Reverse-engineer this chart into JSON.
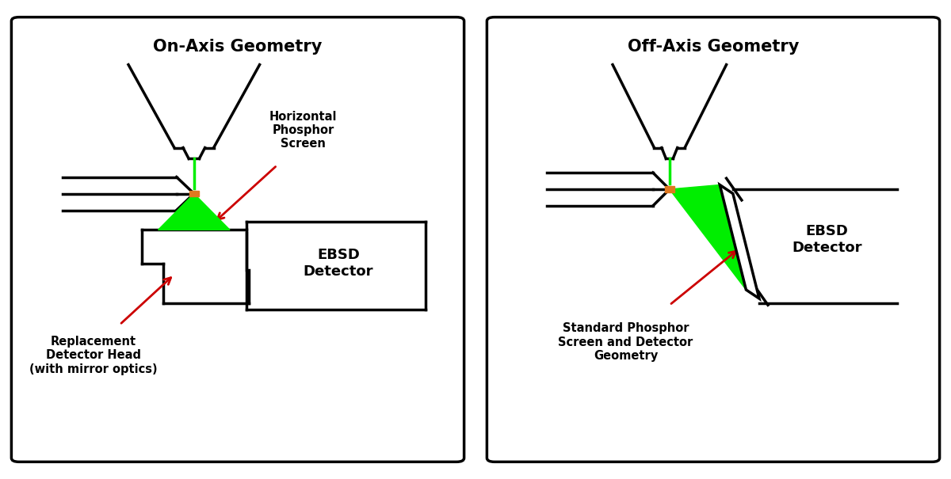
{
  "title_left": "On-Axis Geometry",
  "title_right": "Off-Axis Geometry",
  "bg_color": "#ffffff",
  "line_color": "#000000",
  "green_color": "#00ee00",
  "orange_color": "#e07820",
  "red_color": "#cc0000",
  "label_ebsd_left": "EBSD\nDetector",
  "label_ebsd_right": "EBSD\nDetector",
  "label_phosphor": "Horizontal\nPhosphor\nScreen",
  "label_replacement": "Replacement\nDetector Head\n(with mirror optics)",
  "label_standard": "Standard Phosphor\nScreen and Detector\nGeometry"
}
